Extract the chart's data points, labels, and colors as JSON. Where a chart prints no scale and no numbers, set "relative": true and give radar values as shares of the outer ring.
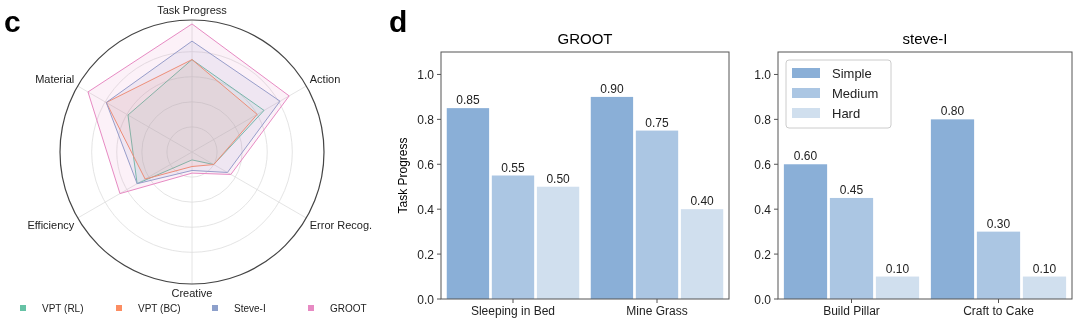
{
  "chart_data": [
    {
      "type": "radar",
      "relative": true,
      "annotations": [
        "c"
      ],
      "legend": "bottom",
      "categories": [
        "Task Progress",
        "Action",
        "Error Recog.",
        "Creative",
        "Efficiency",
        "Material"
      ],
      "series": [
        {
          "name": "VPT (RL)",
          "color": "#66c2a5",
          "values": [
            0.7,
            0.63,
            0.19,
            0.06,
            0.48,
            0.56
          ]
        },
        {
          "name": "VPT (BC)",
          "color": "#fc8d62",
          "values": [
            0.7,
            0.57,
            0.19,
            0.11,
            0.41,
            0.75
          ]
        },
        {
          "name": "Steve-I",
          "color": "#8da0cb",
          "values": [
            0.84,
            0.77,
            0.31,
            0.14,
            0.48,
            0.75
          ]
        },
        {
          "name": "GROOT",
          "color": "#e78ac3",
          "values": [
            0.97,
            0.85,
            0.34,
            0.16,
            0.63,
            0.91
          ]
        }
      ]
    },
    {
      "type": "bar",
      "title": "GROOT",
      "annotations": [
        "d"
      ],
      "ylabel": "Task Progress",
      "categories": [
        "Sleeping in Bed",
        "Mine Grass"
      ],
      "ylim": [
        0,
        1.1
      ],
      "yticks": [
        {
          "value": 0,
          "label": "0.0"
        },
        {
          "value": 0.2,
          "label": "0.2"
        },
        {
          "value": 0.4,
          "label": "0.4"
        },
        {
          "value": 0.6,
          "label": "0.6"
        },
        {
          "value": 0.8,
          "label": "0.8"
        },
        {
          "value": 1,
          "label": "1.0"
        }
      ],
      "series": [
        {
          "color": "#8aafd7",
          "values": [
            0.85,
            0.9
          ],
          "value_labels": [
            "0.85",
            "0.90"
          ]
        },
        {
          "color": "#abc6e3",
          "values": [
            0.55,
            0.75
          ],
          "value_labels": [
            "0.55",
            "0.75"
          ]
        },
        {
          "color": "#d0dfee",
          "values": [
            0.5,
            0.4
          ],
          "value_labels": [
            "0.50",
            "0.40"
          ]
        }
      ]
    },
    {
      "type": "bar",
      "title": "steve-I",
      "legend": "top left",
      "categories": [
        "Build Pillar",
        "Craft to Cake"
      ],
      "ylim": [
        0,
        1.1
      ],
      "yticks": [
        {
          "value": 0,
          "label": "0.0"
        },
        {
          "value": 0.2,
          "label": "0.2"
        },
        {
          "value": 0.4,
          "label": "0.4"
        },
        {
          "value": 0.6,
          "label": "0.6"
        },
        {
          "value": 0.8,
          "label": "0.8"
        },
        {
          "value": 1,
          "label": "1.0"
        }
      ],
      "series": [
        {
          "name": "Simple",
          "color": "#8aafd7",
          "values": [
            0.6,
            0.8
          ],
          "value_labels": [
            "0.60",
            "0.80"
          ]
        },
        {
          "name": "Medium",
          "color": "#abc6e3",
          "values": [
            0.45,
            0.3
          ],
          "value_labels": [
            "0.45",
            "0.30"
          ]
        },
        {
          "name": "Hard",
          "color": "#d0dfee",
          "values": [
            0.1,
            0.1
          ],
          "value_labels": [
            "0.10",
            "0.10"
          ]
        }
      ]
    }
  ]
}
